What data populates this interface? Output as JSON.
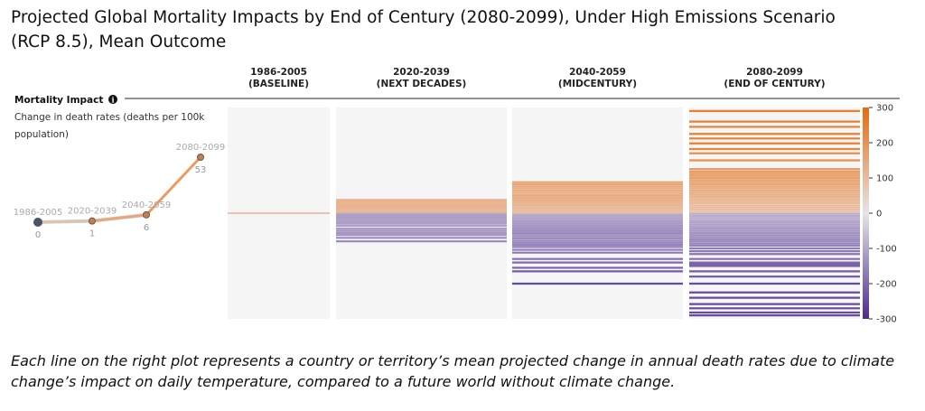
{
  "title": "Projected Global Mortality Impacts by End of Century (2080-2099), Under High Emissions Scenario (RCP 8.5), Mean Outcome",
  "subtitle": "Each line on the right plot represents a country or territory’s mean projected change in annual death rates due to climate change’s impact on daily temperature, compared to a future world without climate change.",
  "chart_data": [
    {
      "type": "line",
      "title": "Mortality Impact",
      "info_icon": "info-icon",
      "ylabel": "Change in death rates (deaths per 100k population)",
      "categories": [
        "1986-2005",
        "2020-2039",
        "2040-2059",
        "2080-2099"
      ],
      "values": [
        0,
        1,
        6,
        53
      ],
      "value_labels": [
        "0",
        "1",
        "6",
        "53"
      ],
      "ylim": [
        -10,
        60
      ],
      "colors": [
        "#4a5563",
        "#c98a5e",
        "#d98c55",
        "#e98d43"
      ]
    },
    {
      "type": "scatter",
      "chart_kind": "strip lines (one line per country/territory)",
      "panels": [
        {
          "label_line1": "1986-2005",
          "label_line2": "(BASELINE)",
          "values": [
            0
          ]
        },
        {
          "label_line1": "2020-2039",
          "label_line2": "(NEXT DECADES)",
          "values": [
            38,
            34,
            30,
            26,
            22,
            20,
            18,
            16,
            14,
            12,
            10,
            8,
            6,
            4,
            2,
            0,
            -2,
            -4,
            -6,
            -8,
            -10,
            -12,
            -14,
            -18,
            -22,
            -26,
            -30,
            -36,
            -44,
            -50,
            -56,
            -62,
            -70,
            -80
          ]
        },
        {
          "label_line1": "2040-2059",
          "label_line2": "(MIDCENTURY)",
          "values": [
            88,
            82,
            76,
            70,
            64,
            58,
            52,
            48,
            44,
            40,
            36,
            32,
            28,
            24,
            20,
            16,
            12,
            8,
            4,
            0,
            -4,
            -8,
            -12,
            -16,
            -20,
            -24,
            -28,
            -32,
            -36,
            -40,
            -44,
            -48,
            -52,
            -56,
            -60,
            -66,
            -72,
            -78,
            -84,
            -90,
            -96,
            -104,
            -112,
            -130,
            -140,
            -155,
            -165,
            -200
          ]
        },
        {
          "label_line1": "2080-2099",
          "label_line2": "(END OF CENTURY)",
          "values": [
            290,
            260,
            245,
            225,
            212,
            198,
            182,
            170,
            150,
            125,
            118,
            112,
            106,
            100,
            94,
            88,
            82,
            76,
            70,
            64,
            58,
            52,
            46,
            40,
            34,
            28,
            22,
            16,
            10,
            4,
            -2,
            -8,
            -14,
            -20,
            -26,
            -32,
            -38,
            -44,
            -50,
            -56,
            -62,
            -68,
            -74,
            -80,
            -86,
            -92,
            -100,
            -108,
            -116,
            -130,
            -140,
            -145,
            -150,
            -165,
            -180,
            -200,
            -225,
            -240,
            -258,
            -270,
            -282,
            -290
          ]
        }
      ],
      "colorbar_ticks": [
        "300",
        "200",
        "100",
        "0",
        "-100",
        "-200",
        "-300"
      ],
      "ylim": [
        -300,
        300
      ],
      "colors": {
        "positive": "#e56a10",
        "neutral": "#e8e4e6",
        "negative": "#4b2c91"
      }
    }
  ]
}
